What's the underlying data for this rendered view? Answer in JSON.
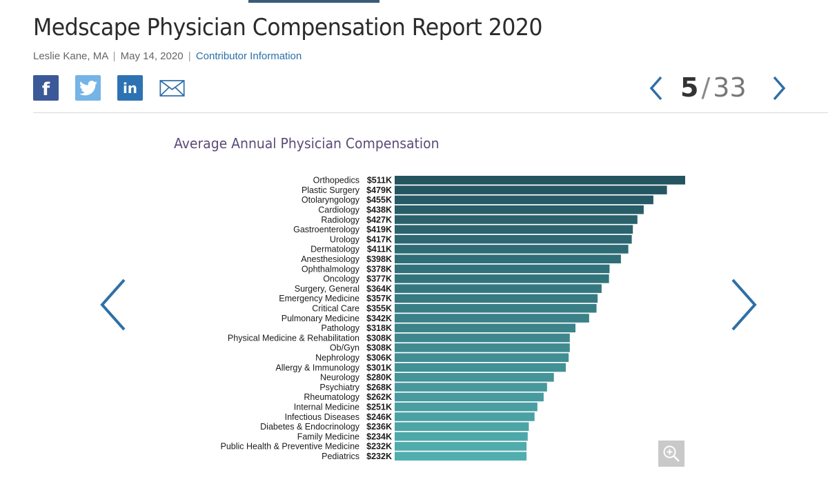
{
  "article": {
    "title": "Medscape Physician Compensation Report 2020",
    "author": "Leslie Kane, MA",
    "date": "May 14, 2020",
    "byline_sep": "|",
    "contributor_link": "Contributor Information"
  },
  "share": {
    "facebook_glyph": "f",
    "linkedin_glyph": "in",
    "icons": [
      "facebook-icon",
      "twitter-icon",
      "linkedin-icon",
      "email-icon"
    ]
  },
  "pager": {
    "current": "5",
    "slash": "/",
    "total": "33"
  },
  "colors": {
    "link": "#2a6fa8",
    "arrow": "#2f6fa6",
    "bar_dark": "#235460",
    "bar_light": "#51aeaf",
    "chart_title": "#5a4a78"
  },
  "chart_data": {
    "type": "bar",
    "orientation": "horizontal",
    "title": "Average Annual Physician Compensation",
    "xlabel": "",
    "ylabel": "",
    "grid": false,
    "categories": [
      "Orthopedics",
      "Plastic Surgery",
      "Otolaryngology",
      "Cardiology",
      "Radiology",
      "Gastroenterology",
      "Urology",
      "Dermatology",
      "Anesthesiology",
      "Ophthalmology",
      "Oncology",
      "Surgery, General",
      "Emergency Medicine",
      "Critical Care",
      "Pulmonary Medicine",
      "Pathology",
      "Physical Medicine & Rehabilitation",
      "Ob/Gyn",
      "Nephrology",
      "Allergy & Immunology",
      "Neurology",
      "Psychiatry",
      "Rheumatology",
      "Internal Medicine",
      "Infectious Diseases",
      "Diabetes & Endocrinology",
      "Family Medicine",
      "Public Health & Preventive Medicine",
      "Pediatrics"
    ],
    "values": [
      511,
      479,
      455,
      438,
      427,
      419,
      417,
      411,
      398,
      378,
      377,
      364,
      357,
      355,
      342,
      318,
      308,
      308,
      306,
      301,
      280,
      268,
      262,
      251,
      246,
      236,
      234,
      232,
      232
    ],
    "value_labels": [
      "$511K",
      "$479K",
      "$455K",
      "$438K",
      "$427K",
      "$419K",
      "$417K",
      "$411K",
      "$398K",
      "$378K",
      "$377K",
      "$364K",
      "$357K",
      "$355K",
      "$342K",
      "$318K",
      "$308K",
      "$308K",
      "$306K",
      "$301K",
      "$280K",
      "$268K",
      "$262K",
      "$251K",
      "$246K",
      "$236K",
      "$234K",
      "$232K",
      "$232K"
    ],
    "unit": "$K"
  }
}
